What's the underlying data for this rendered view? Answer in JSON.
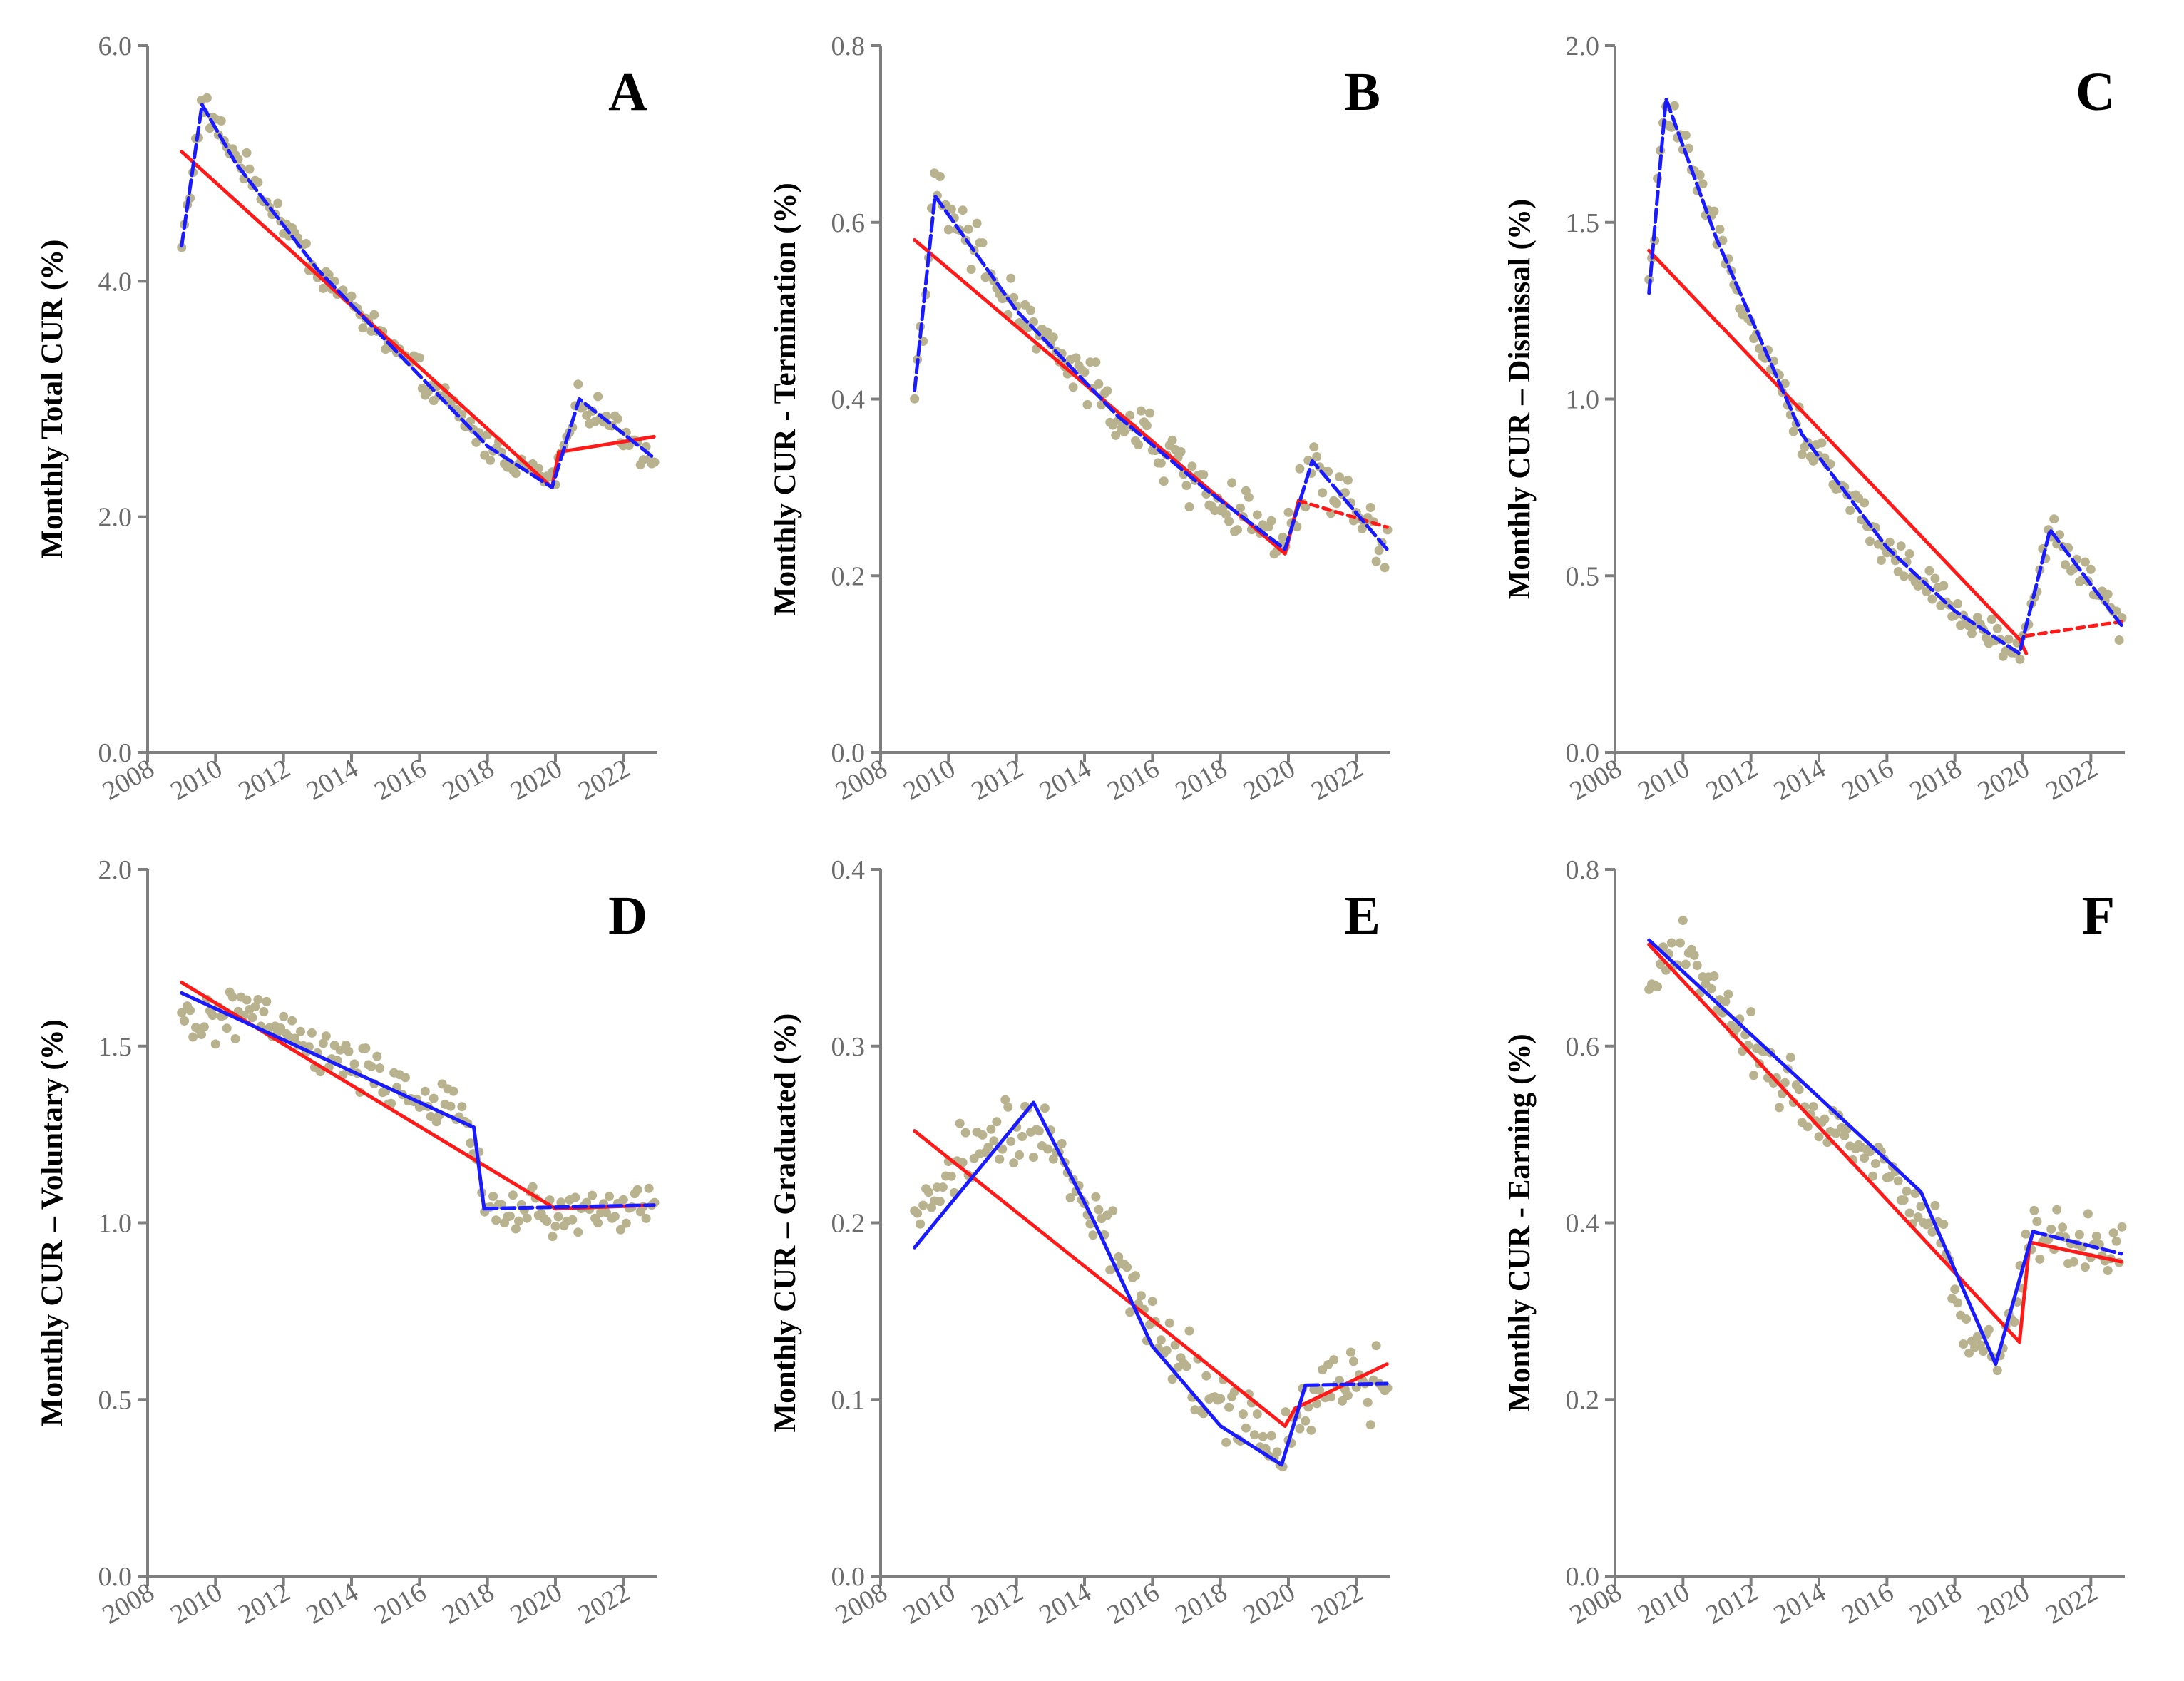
{
  "figure": {
    "description_title": ""
  },
  "colors": {
    "axis": "#7f7f7f",
    "points": "#b8b28f",
    "fit_red": "#ff1a1a",
    "fit_blue": "#1a1aff"
  },
  "chart_data": [
    {
      "type": "scatter",
      "panel": "A",
      "ylabel": "Monthly Total CUR (%)",
      "ylim": [
        0,
        6
      ],
      "yticks": [
        "0.0",
        "2.0",
        "4.0",
        "6.0"
      ],
      "xlim": [
        2008,
        2023
      ],
      "xticks": [
        "2008",
        "2010",
        "2012",
        "2014",
        "2016",
        "2018",
        "2020",
        "2022"
      ],
      "knots": [
        [
          2009.0,
          4.3
        ],
        [
          2009.6,
          5.5
        ],
        [
          2010.5,
          5.1
        ],
        [
          2013.0,
          4.1
        ],
        [
          2018.0,
          2.6
        ],
        [
          2019.9,
          2.3
        ],
        [
          2020.7,
          3.0
        ],
        [
          2022.9,
          2.5
        ]
      ],
      "noise": 0.1,
      "red_segments": [
        {
          "from": [
            2009.0,
            5.1
          ],
          "to": [
            2019.9,
            2.25
          ],
          "dashed": false
        },
        {
          "from": [
            2019.9,
            2.25
          ],
          "to": [
            2020.1,
            2.55
          ],
          "dashed": false
        },
        {
          "from": [
            2020.1,
            2.55
          ],
          "to": [
            2022.9,
            2.68
          ],
          "dashed": false
        }
      ],
      "blue_segments": [
        {
          "points": [
            [
              2009.0,
              4.3
            ],
            [
              2009.6,
              5.5
            ],
            [
              2010.6,
              5.0
            ],
            [
              2013.0,
              4.1
            ],
            [
              2018.0,
              2.6
            ],
            [
              2019.9,
              2.25
            ],
            [
              2020.7,
              3.0
            ],
            [
              2022.9,
              2.5
            ]
          ],
          "dashed": true
        }
      ]
    },
    {
      "type": "scatter",
      "panel": "B",
      "ylabel": "Monthly CUR - Termination (%)",
      "ylim": [
        0,
        0.8
      ],
      "yticks": [
        "0.0",
        "0.2",
        "0.4",
        "0.6",
        "0.8"
      ],
      "xlim": [
        2008,
        2023
      ],
      "xticks": [
        "2008",
        "2010",
        "2012",
        "2014",
        "2016",
        "2018",
        "2020",
        "2022"
      ],
      "knots": [
        [
          2009.0,
          0.41
        ],
        [
          2009.6,
          0.63
        ],
        [
          2012.0,
          0.5
        ],
        [
          2015.0,
          0.38
        ],
        [
          2017.5,
          0.3
        ],
        [
          2019.9,
          0.23
        ],
        [
          2020.7,
          0.33
        ],
        [
          2022.9,
          0.23
        ]
      ],
      "noise": 0.025,
      "red_segments": [
        {
          "from": [
            2009.0,
            0.58
          ],
          "to": [
            2019.9,
            0.225
          ],
          "dashed": false
        },
        {
          "from": [
            2019.9,
            0.225
          ],
          "to": [
            2020.3,
            0.285
          ],
          "dashed": false
        },
        {
          "from": [
            2020.3,
            0.285
          ],
          "to": [
            2022.9,
            0.255
          ],
          "dashed": true
        }
      ],
      "blue_segments": [
        {
          "points": [
            [
              2009.0,
              0.41
            ],
            [
              2009.6,
              0.63
            ],
            [
              2012.0,
              0.5
            ],
            [
              2015.0,
              0.38
            ],
            [
              2017.5,
              0.3
            ],
            [
              2019.9,
              0.23
            ],
            [
              2020.7,
              0.33
            ],
            [
              2022.9,
              0.23
            ]
          ],
          "dashed": true
        }
      ]
    },
    {
      "type": "scatter",
      "panel": "C",
      "ylabel": "Monthly CUR – Dismissal (%)",
      "ylim": [
        0,
        2.0
      ],
      "yticks": [
        "0.0",
        "0.5",
        "1.0",
        "1.5",
        "2.0"
      ],
      "xlim": [
        2008,
        2023
      ],
      "xticks": [
        "2008",
        "2010",
        "2012",
        "2014",
        "2016",
        "2018",
        "2020",
        "2022"
      ],
      "knots": [
        [
          2009.0,
          1.3
        ],
        [
          2009.5,
          1.85
        ],
        [
          2011.0,
          1.45
        ],
        [
          2013.5,
          0.9
        ],
        [
          2016.0,
          0.58
        ],
        [
          2018.0,
          0.4
        ],
        [
          2019.9,
          0.28
        ],
        [
          2020.8,
          0.63
        ],
        [
          2022.9,
          0.36
        ]
      ],
      "noise": 0.04,
      "red_segments": [
        {
          "from": [
            2009.0,
            1.42
          ],
          "to": [
            2019.9,
            0.32
          ],
          "dashed": false
        },
        {
          "from": [
            2019.9,
            0.32
          ],
          "to": [
            2020.1,
            0.28
          ],
          "dashed": false
        },
        {
          "from": [
            2020.1,
            0.33
          ],
          "to": [
            2022.9,
            0.37
          ],
          "dashed": true
        }
      ],
      "blue_segments": [
        {
          "points": [
            [
              2009.0,
              1.3
            ],
            [
              2009.5,
              1.85
            ],
            [
              2011.0,
              1.45
            ],
            [
              2013.5,
              0.9
            ],
            [
              2016.0,
              0.58
            ],
            [
              2018.0,
              0.4
            ],
            [
              2019.9,
              0.28
            ],
            [
              2020.8,
              0.63
            ],
            [
              2022.9,
              0.36
            ]
          ],
          "dashed": true
        }
      ]
    },
    {
      "type": "scatter",
      "panel": "D",
      "ylabel": "Monthly CUR – Voluntary (%)",
      "ylim": [
        0,
        2.0
      ],
      "yticks": [
        "0.0",
        "0.5",
        "1.0",
        "1.5",
        "2.0"
      ],
      "xlim": [
        2008,
        2023
      ],
      "xticks": [
        "2008",
        "2010",
        "2012",
        "2014",
        "2016",
        "2018",
        "2020",
        "2022"
      ],
      "knots": [
        [
          2009.0,
          1.56
        ],
        [
          2011.0,
          1.6
        ],
        [
          2013.0,
          1.48
        ],
        [
          2015.0,
          1.4
        ],
        [
          2017.5,
          1.28
        ],
        [
          2018.0,
          1.05
        ],
        [
          2020.0,
          1.02
        ],
        [
          2022.9,
          1.05
        ]
      ],
      "noise": 0.05,
      "red_segments": [
        {
          "from": [
            2009.0,
            1.68
          ],
          "to": [
            2020.0,
            1.04
          ],
          "dashed": false
        },
        {
          "from": [
            2020.0,
            1.04
          ],
          "to": [
            2022.9,
            1.05
          ],
          "dashed": false
        }
      ],
      "blue_segments": [
        {
          "points": [
            [
              2009.0,
              1.65
            ],
            [
              2017.6,
              1.27
            ],
            [
              2017.9,
              1.04
            ]
          ],
          "dashed": false
        },
        {
          "points": [
            [
              2017.9,
              1.04
            ],
            [
              2022.9,
              1.05
            ]
          ],
          "dashed": true
        }
      ]
    },
    {
      "type": "scatter",
      "panel": "E",
      "ylabel": "Monthly CUR – Graduated (%)",
      "ylim": [
        0,
        0.4
      ],
      "yticks": [
        "0.0",
        "0.1",
        "0.2",
        "0.3",
        "0.4"
      ],
      "xlim": [
        2008,
        2023
      ],
      "xticks": [
        "2008",
        "2010",
        "2012",
        "2014",
        "2016",
        "2018",
        "2020",
        "2022"
      ],
      "knots": [
        [
          2009.0,
          0.2
        ],
        [
          2010.5,
          0.24
        ],
        [
          2012.5,
          0.25
        ],
        [
          2014.0,
          0.22
        ],
        [
          2016.0,
          0.14
        ],
        [
          2018.0,
          0.1
        ],
        [
          2019.9,
          0.07
        ],
        [
          2020.6,
          0.105
        ],
        [
          2022.9,
          0.11
        ]
      ],
      "noise": 0.016,
      "red_segments": [
        {
          "from": [
            2009.0,
            0.252
          ],
          "to": [
            2019.9,
            0.085
          ],
          "dashed": false
        },
        {
          "from": [
            2019.9,
            0.085
          ],
          "to": [
            2020.2,
            0.095
          ],
          "dashed": false
        },
        {
          "from": [
            2020.2,
            0.095
          ],
          "to": [
            2022.9,
            0.12
          ],
          "dashed": false
        }
      ],
      "blue_segments": [
        {
          "points": [
            [
              2009.0,
              0.186
            ],
            [
              2012.5,
              0.268
            ],
            [
              2014.3,
              0.2
            ],
            [
              2016.0,
              0.13
            ],
            [
              2018.0,
              0.085
            ],
            [
              2019.8,
              0.063
            ],
            [
              2020.5,
              0.108
            ]
          ],
          "dashed": false
        },
        {
          "points": [
            [
              2020.5,
              0.108
            ],
            [
              2022.9,
              0.109
            ]
          ],
          "dashed": true
        }
      ]
    },
    {
      "type": "scatter",
      "panel": "F",
      "ylabel": "Monthly CUR - Earning (%)",
      "ylim": [
        0,
        0.8
      ],
      "yticks": [
        "0.0",
        "0.2",
        "0.4",
        "0.6",
        "0.8"
      ],
      "xlim": [
        2008,
        2023
      ],
      "xticks": [
        "2008",
        "2010",
        "2012",
        "2014",
        "2016",
        "2018",
        "2020",
        "2022"
      ],
      "knots": [
        [
          2009.0,
          0.66
        ],
        [
          2010.0,
          0.72
        ],
        [
          2012.0,
          0.6
        ],
        [
          2014.0,
          0.52
        ],
        [
          2016.0,
          0.47
        ],
        [
          2017.5,
          0.39
        ],
        [
          2018.5,
          0.25
        ],
        [
          2019.5,
          0.27
        ],
        [
          2020.3,
          0.39
        ],
        [
          2022.9,
          0.37
        ]
      ],
      "noise": 0.025,
      "red_segments": [
        {
          "from": [
            2009.0,
            0.715
          ],
          "to": [
            2019.9,
            0.265
          ],
          "dashed": false
        },
        {
          "from": [
            2019.9,
            0.265
          ],
          "to": [
            2020.2,
            0.378
          ],
          "dashed": false
        },
        {
          "from": [
            2020.2,
            0.378
          ],
          "to": [
            2022.9,
            0.356
          ],
          "dashed": false
        }
      ],
      "blue_segments": [
        {
          "points": [
            [
              2009.0,
              0.72
            ],
            [
              2017.0,
              0.435
            ],
            [
              2019.2,
              0.24
            ],
            [
              2020.3,
              0.39
            ]
          ],
          "dashed": false
        },
        {
          "points": [
            [
              2020.3,
              0.39
            ],
            [
              2022.9,
              0.365
            ]
          ],
          "dashed": true
        }
      ]
    }
  ]
}
